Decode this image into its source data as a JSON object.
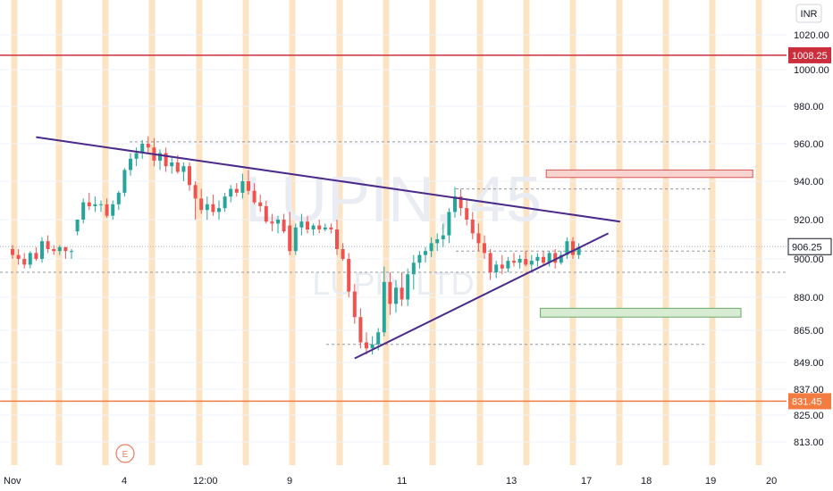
{
  "chart_data": {
    "type": "candlestick",
    "title": "",
    "watermark": {
      "symbol": "LUPIN, 45",
      "name": "LUPIN LTD"
    },
    "currency": "INR",
    "xlabel": "",
    "ylabel": "",
    "x_ticks": [
      "Nov",
      "4",
      "12:00",
      "9",
      "11",
      "13",
      "17",
      "18",
      "19",
      "20"
    ],
    "y_ticks": [
      "1020.00",
      "1000.00",
      "980.00",
      "960.00",
      "940.00",
      "920.00",
      "900.00",
      "880.00",
      "865.00",
      "849.00",
      "837.00",
      "825.00",
      "813.00"
    ],
    "ylim": [
      803,
      1028
    ],
    "price_labels": [
      {
        "value": "1008.25",
        "color": "#cc2f3c"
      },
      {
        "value": "906.25",
        "color": "#131722"
      },
      {
        "value": "831.45",
        "color": "#f57c40"
      }
    ],
    "horizontal_levels": [
      1008.25,
      831.45
    ],
    "dotted_levels": [
      961,
      936,
      904,
      893,
      858
    ],
    "trendlines": [
      {
        "name": "resistance",
        "from": {
          "bar": 4,
          "price": 963.5
        },
        "to": {
          "bar": 103,
          "price": 919
        }
      },
      {
        "name": "support",
        "from": {
          "bar": 58,
          "price": 851
        },
        "to": {
          "bar": 101,
          "price": 913
        }
      }
    ],
    "zones": [
      {
        "kind": "supply",
        "from_bar": 92,
        "to_bar": 127,
        "top": 946,
        "bottom": 942
      },
      {
        "kind": "demand",
        "from_bar": 91,
        "to_bar": 125,
        "top": 875,
        "bottom": 871
      }
    ],
    "earnings_marker": "E",
    "candles": [
      {
        "o": 905,
        "h": 907,
        "l": 900,
        "c": 902
      },
      {
        "o": 902,
        "h": 905,
        "l": 897,
        "c": 900
      },
      {
        "o": 900,
        "h": 903,
        "l": 895,
        "c": 897
      },
      {
        "o": 897,
        "h": 904,
        "l": 895,
        "c": 903
      },
      {
        "o": 903,
        "h": 906,
        "l": 899,
        "c": 900
      },
      {
        "o": 900,
        "h": 911,
        "l": 898,
        "c": 909
      },
      {
        "o": 909,
        "h": 912,
        "l": 903,
        "c": 905
      },
      {
        "o": 905,
        "h": 907,
        "l": 902,
        "c": 904
      },
      {
        "o": 904,
        "h": 907,
        "l": 902,
        "c": 906
      },
      {
        "o": 906,
        "h": 906,
        "l": 900,
        "c": 904
      },
      {
        "o": 904,
        "h": 905,
        "l": 900,
        "c": 904
      },
      {
        "o": 914,
        "h": 920,
        "l": 912,
        "c": 920
      },
      {
        "o": 920,
        "h": 931,
        "l": 918,
        "c": 929
      },
      {
        "o": 929,
        "h": 934,
        "l": 925,
        "c": 927
      },
      {
        "o": 927,
        "h": 932,
        "l": 924,
        "c": 928
      },
      {
        "o": 928,
        "h": 930,
        "l": 924,
        "c": 928
      },
      {
        "o": 928,
        "h": 931,
        "l": 921,
        "c": 922
      },
      {
        "o": 922,
        "h": 930,
        "l": 920,
        "c": 928
      },
      {
        "o": 928,
        "h": 935,
        "l": 925,
        "c": 934
      },
      {
        "o": 934,
        "h": 947,
        "l": 932,
        "c": 946
      },
      {
        "o": 946,
        "h": 955,
        "l": 943,
        "c": 952
      },
      {
        "o": 952,
        "h": 958,
        "l": 948,
        "c": 955
      },
      {
        "o": 955,
        "h": 962,
        "l": 952,
        "c": 960
      },
      {
        "o": 960,
        "h": 964,
        "l": 955,
        "c": 958
      },
      {
        "o": 958,
        "h": 963,
        "l": 948,
        "c": 951
      },
      {
        "o": 951,
        "h": 957,
        "l": 946,
        "c": 955
      },
      {
        "o": 955,
        "h": 958,
        "l": 945,
        "c": 948
      },
      {
        "o": 948,
        "h": 953,
        "l": 944,
        "c": 950
      },
      {
        "o": 950,
        "h": 954,
        "l": 944,
        "c": 945
      },
      {
        "o": 945,
        "h": 950,
        "l": 940,
        "c": 948
      },
      {
        "o": 948,
        "h": 950,
        "l": 935,
        "c": 938
      },
      {
        "o": 938,
        "h": 940,
        "l": 920,
        "c": 931
      },
      {
        "o": 931,
        "h": 936,
        "l": 923,
        "c": 925
      },
      {
        "o": 925,
        "h": 932,
        "l": 920,
        "c": 928
      },
      {
        "o": 928,
        "h": 933,
        "l": 922,
        "c": 924
      },
      {
        "o": 924,
        "h": 930,
        "l": 920,
        "c": 926
      },
      {
        "o": 926,
        "h": 934,
        "l": 924,
        "c": 932
      },
      {
        "o": 932,
        "h": 938,
        "l": 929,
        "c": 936
      },
      {
        "o": 936,
        "h": 939,
        "l": 932,
        "c": 934
      },
      {
        "o": 934,
        "h": 944,
        "l": 931,
        "c": 940
      },
      {
        "o": 940,
        "h": 946,
        "l": 933,
        "c": 935
      },
      {
        "o": 935,
        "h": 939,
        "l": 928,
        "c": 929
      },
      {
        "o": 929,
        "h": 933,
        "l": 924,
        "c": 927
      },
      {
        "o": 927,
        "h": 930,
        "l": 918,
        "c": 919
      },
      {
        "o": 919,
        "h": 923,
        "l": 914,
        "c": 918
      },
      {
        "o": 918,
        "h": 922,
        "l": 913,
        "c": 920
      },
      {
        "o": 920,
        "h": 923,
        "l": 913,
        "c": 914
      },
      {
        "o": 917,
        "h": 924,
        "l": 902,
        "c": 904
      },
      {
        "o": 904,
        "h": 918,
        "l": 902,
        "c": 916
      },
      {
        "o": 916,
        "h": 923,
        "l": 912,
        "c": 919
      },
      {
        "o": 919,
        "h": 922,
        "l": 913,
        "c": 915
      },
      {
        "o": 915,
        "h": 918,
        "l": 912,
        "c": 917
      },
      {
        "o": 917,
        "h": 920,
        "l": 913,
        "c": 915
      },
      {
        "o": 915,
        "h": 918,
        "l": 914,
        "c": 916
      },
      {
        "o": 916,
        "h": 918,
        "l": 913,
        "c": 915
      },
      {
        "o": 915,
        "h": 920,
        "l": 902,
        "c": 905
      },
      {
        "o": 905,
        "h": 908,
        "l": 899,
        "c": 900
      },
      {
        "o": 900,
        "h": 903,
        "l": 880,
        "c": 883
      },
      {
        "o": 883,
        "h": 887,
        "l": 868,
        "c": 871
      },
      {
        "o": 871,
        "h": 875,
        "l": 856,
        "c": 859
      },
      {
        "o": 859,
        "h": 864,
        "l": 853,
        "c": 856
      },
      {
        "o": 856,
        "h": 862,
        "l": 853,
        "c": 858
      },
      {
        "o": 858,
        "h": 866,
        "l": 855,
        "c": 864
      },
      {
        "o": 864,
        "h": 896,
        "l": 862,
        "c": 888
      },
      {
        "o": 888,
        "h": 893,
        "l": 872,
        "c": 877
      },
      {
        "o": 877,
        "h": 889,
        "l": 873,
        "c": 885
      },
      {
        "o": 885,
        "h": 893,
        "l": 876,
        "c": 879
      },
      {
        "o": 879,
        "h": 895,
        "l": 876,
        "c": 892
      },
      {
        "o": 892,
        "h": 902,
        "l": 884,
        "c": 898
      },
      {
        "o": 898,
        "h": 904,
        "l": 895,
        "c": 902
      },
      {
        "o": 902,
        "h": 906,
        "l": 898,
        "c": 904
      },
      {
        "o": 904,
        "h": 911,
        "l": 901,
        "c": 908
      },
      {
        "o": 908,
        "h": 913,
        "l": 904,
        "c": 910
      },
      {
        "o": 910,
        "h": 918,
        "l": 906,
        "c": 912
      },
      {
        "o": 912,
        "h": 926,
        "l": 908,
        "c": 924
      },
      {
        "o": 924,
        "h": 937,
        "l": 921,
        "c": 932
      },
      {
        "o": 932,
        "h": 936,
        "l": 922,
        "c": 926
      },
      {
        "o": 926,
        "h": 930,
        "l": 917,
        "c": 920
      },
      {
        "o": 920,
        "h": 924,
        "l": 910,
        "c": 913
      },
      {
        "o": 913,
        "h": 918,
        "l": 904,
        "c": 908
      },
      {
        "o": 908,
        "h": 912,
        "l": 900,
        "c": 903
      },
      {
        "o": 903,
        "h": 905,
        "l": 889,
        "c": 893
      },
      {
        "o": 893,
        "h": 899,
        "l": 890,
        "c": 897
      },
      {
        "o": 897,
        "h": 902,
        "l": 892,
        "c": 895
      },
      {
        "o": 895,
        "h": 901,
        "l": 893,
        "c": 899
      },
      {
        "o": 899,
        "h": 903,
        "l": 896,
        "c": 898
      },
      {
        "o": 898,
        "h": 902,
        "l": 895,
        "c": 900
      },
      {
        "o": 900,
        "h": 904,
        "l": 896,
        "c": 897
      },
      {
        "o": 897,
        "h": 902,
        "l": 894,
        "c": 899
      },
      {
        "o": 899,
        "h": 903,
        "l": 896,
        "c": 901
      },
      {
        "o": 901,
        "h": 904,
        "l": 897,
        "c": 898
      },
      {
        "o": 898,
        "h": 904,
        "l": 896,
        "c": 903
      },
      {
        "o": 903,
        "h": 905,
        "l": 895,
        "c": 898
      },
      {
        "o": 898,
        "h": 904,
        "l": 897,
        "c": 902
      },
      {
        "o": 902,
        "h": 911,
        "l": 900,
        "c": 909
      },
      {
        "o": 909,
        "h": 911,
        "l": 900,
        "c": 902
      },
      {
        "o": 902,
        "h": 908,
        "l": 900,
        "c": 906
      }
    ],
    "colors": {
      "up": "#26a69a",
      "down": "#ef5350",
      "vband": "#fbe3c4",
      "level_high": "#cc2f3c",
      "level_low": "#f57c40",
      "trendline": "#4a2a8a",
      "supply_fill": "#f7d4d0",
      "supply_stroke": "#d9534f",
      "demand_fill": "#d8ecd4",
      "demand_stroke": "#6aa865",
      "grid": "#f0f3fa",
      "dotted": "#9598a1"
    }
  }
}
